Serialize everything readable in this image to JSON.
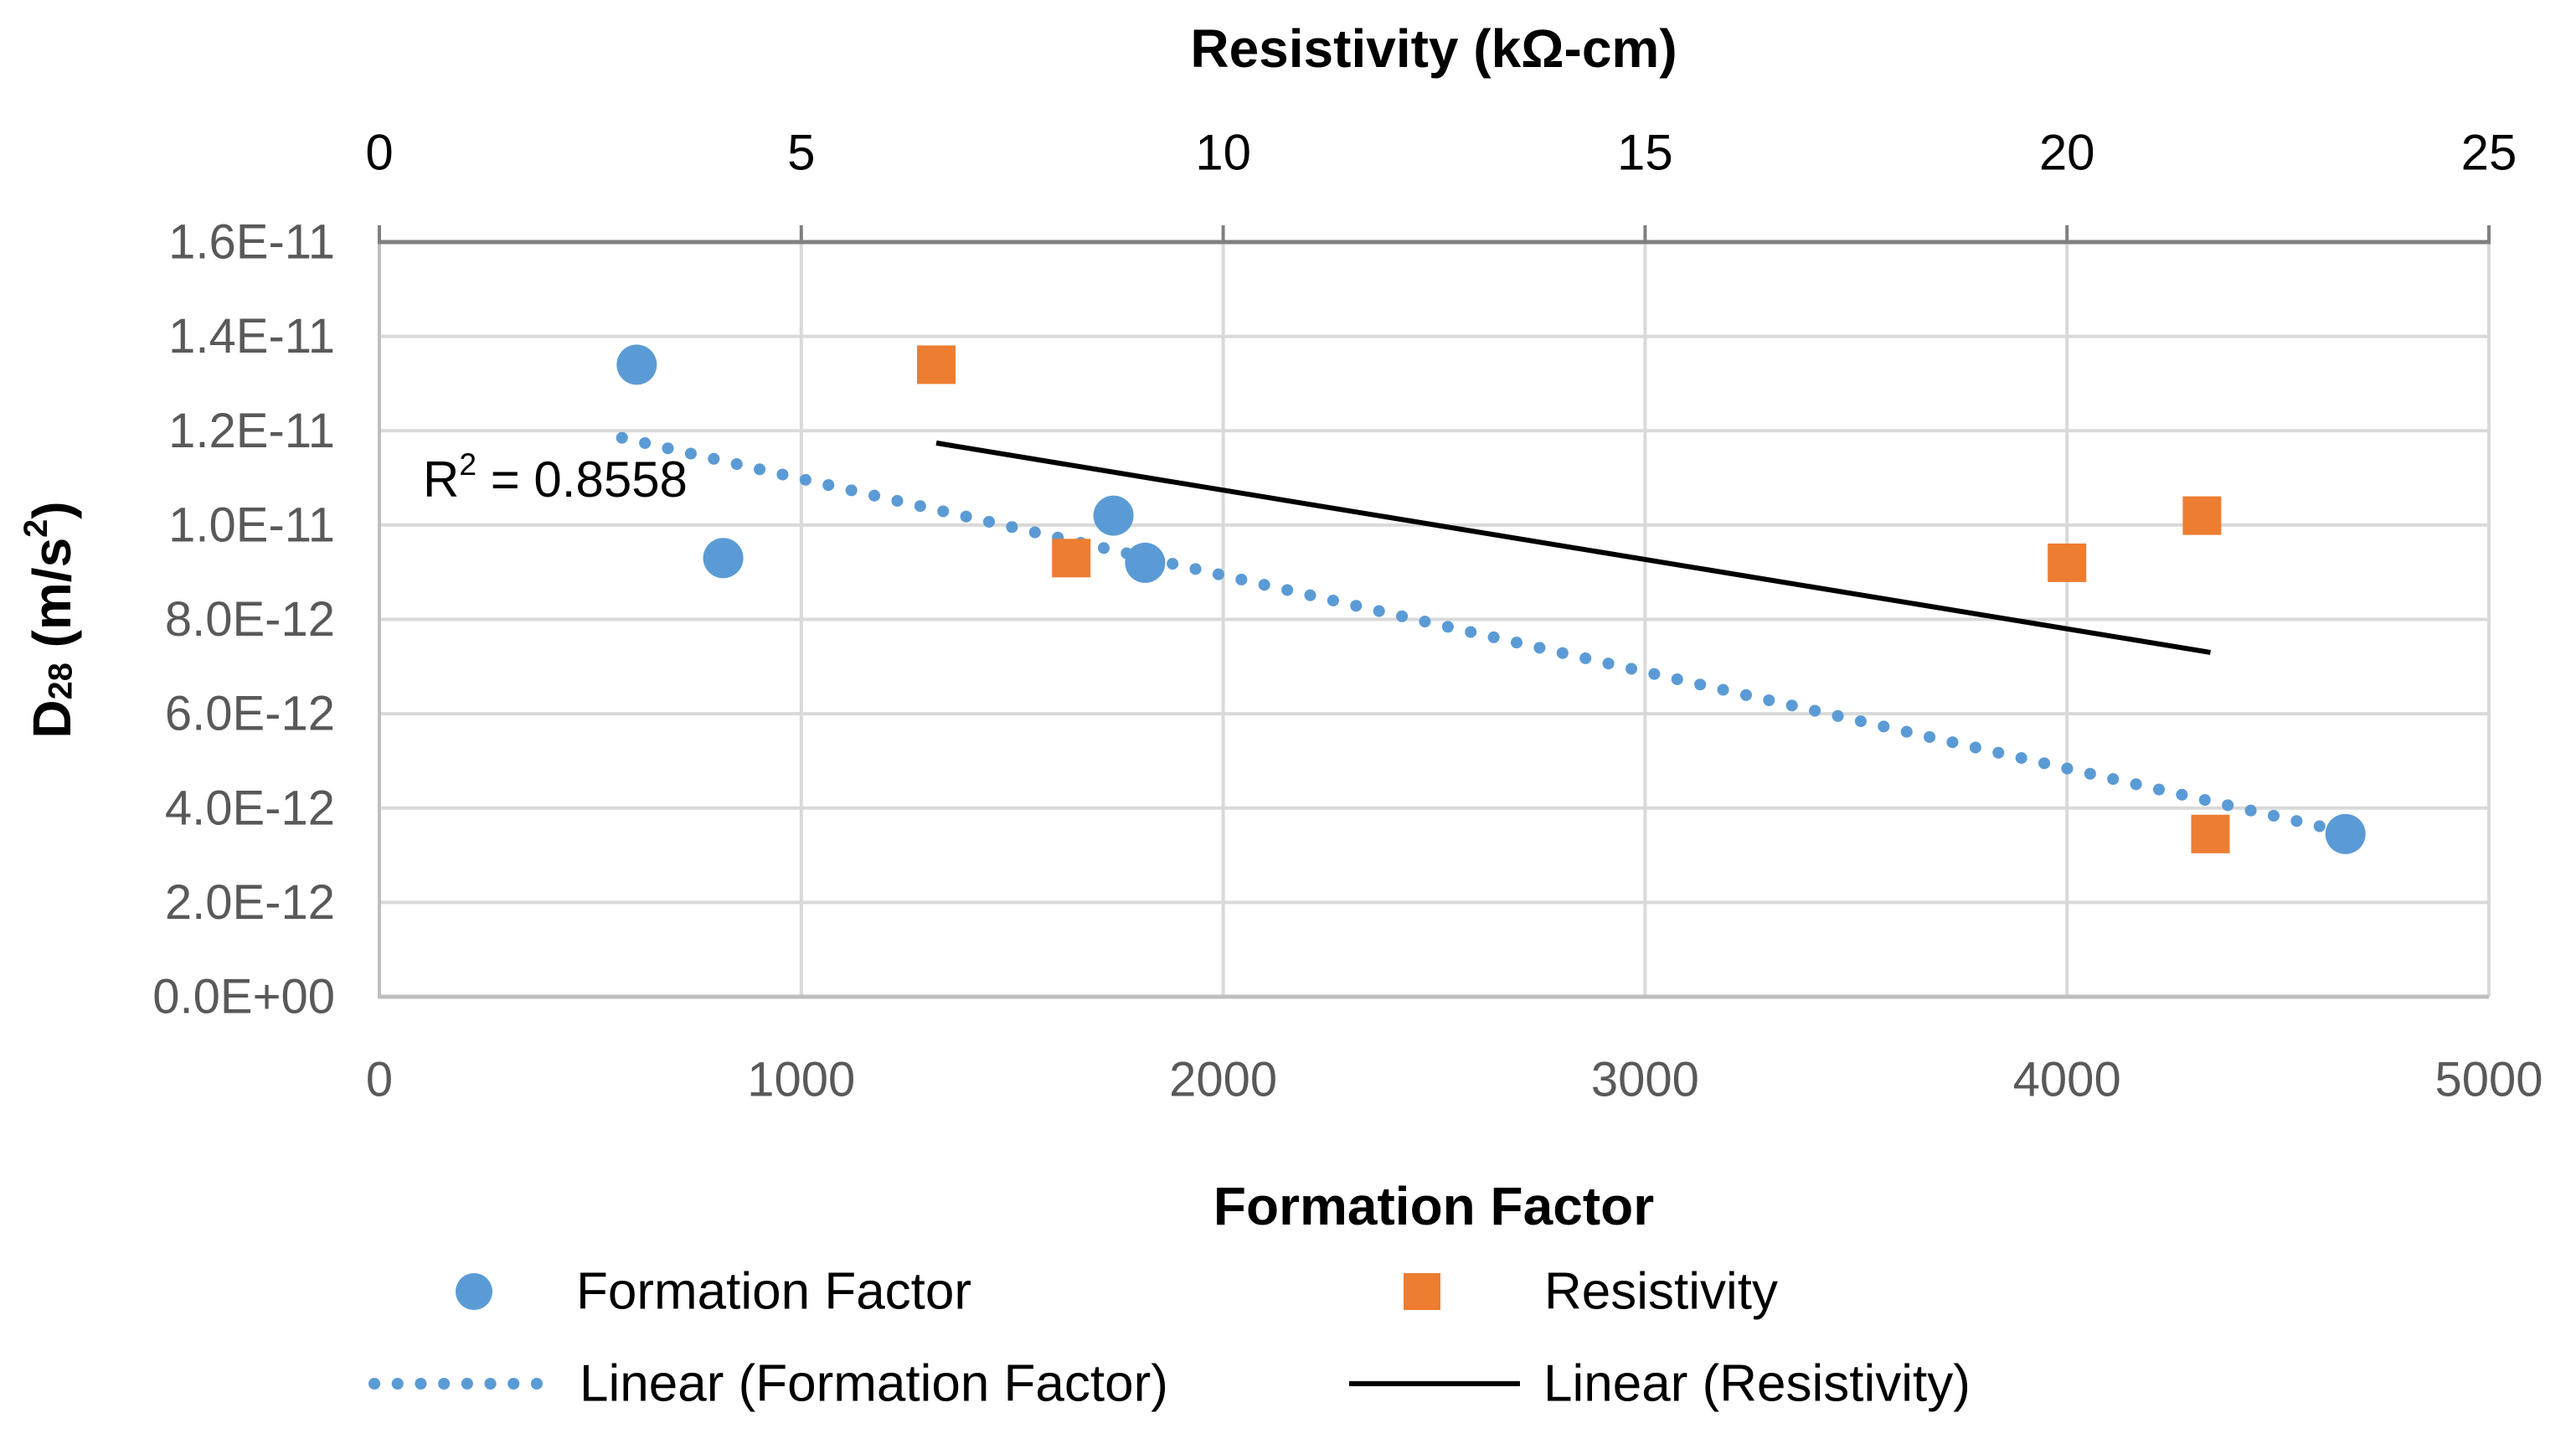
{
  "chart_data": {
    "type": "scatter",
    "top_axis": {
      "title": "Resistivity (kΩ-cm)",
      "min": 0,
      "max": 25,
      "ticks": [
        0,
        5,
        10,
        15,
        20,
        25
      ]
    },
    "bottom_axis": {
      "title": "Formation Factor",
      "min": 0,
      "max": 5000,
      "ticks": [
        0,
        1000,
        2000,
        3000,
        4000,
        5000
      ]
    },
    "y_axis": {
      "title_plain": "D28 (m/s2)",
      "title_parts": [
        {
          "t": "D"
        },
        {
          "t": "28",
          "sub": true
        },
        {
          "t": " (m/s"
        },
        {
          "t": "2",
          "sup": true
        },
        {
          "t": ")"
        }
      ],
      "min": 0,
      "max": 1.6e-11,
      "ticks": [
        {
          "value": 0.0,
          "label": "0.0E+00"
        },
        {
          "value": 2e-12,
          "label": "2.0E-12"
        },
        {
          "value": 4e-12,
          "label": "4.0E-12"
        },
        {
          "value": 6e-12,
          "label": "6.0E-12"
        },
        {
          "value": 8e-12,
          "label": "8.0E-12"
        },
        {
          "value": 1e-11,
          "label": "1.0E-11"
        },
        {
          "value": 1.2e-11,
          "label": "1.2E-11"
        },
        {
          "value": 1.4e-11,
          "label": "1.4E-11"
        },
        {
          "value": 1.6e-11,
          "label": "1.6E-11"
        }
      ]
    },
    "series": [
      {
        "name": "Formation Factor",
        "axis": "bottom",
        "marker": "circle",
        "color": "#5B9BD5",
        "points": [
          {
            "x": 610,
            "y": 1.34e-11
          },
          {
            "x": 815,
            "y": 9.3e-12
          },
          {
            "x": 1740,
            "y": 1.02e-11
          },
          {
            "x": 1815,
            "y": 9.2e-12
          },
          {
            "x": 4660,
            "y": 3.45e-12
          }
        ]
      },
      {
        "name": "Resistivity",
        "axis": "top",
        "marker": "square",
        "color": "#ED7D31",
        "points": [
          {
            "x": 6.6,
            "y": 1.34e-11
          },
          {
            "x": 8.2,
            "y": 9.3e-12
          },
          {
            "x": 21.6,
            "y": 1.02e-11
          },
          {
            "x": 20.0,
            "y": 9.2e-12
          },
          {
            "x": 21.7,
            "y": 3.45e-12
          }
        ]
      }
    ],
    "trendlines": [
      {
        "name": "Linear (Formation Factor)",
        "axis": "bottom",
        "style": "dotted",
        "color": "#5B9BD5",
        "from": {
          "x": 575,
          "y": 1.185e-11
        },
        "to": {
          "x": 4645,
          "y": 3.52e-12
        }
      },
      {
        "name": "Linear (Resistivity)",
        "axis": "top",
        "style": "solid",
        "color": "#000000",
        "from": {
          "x": 6.6,
          "y": 1.174e-11
        },
        "to": {
          "x": 21.7,
          "y": 7.3e-12
        }
      }
    ],
    "annotation": {
      "plain": "R² = 0.8558",
      "parts": [
        {
          "t": "R"
        },
        {
          "t": "2",
          "sup": true
        },
        {
          "t": " = 0.8558"
        }
      ]
    },
    "grid": true,
    "legend_position": "bottom"
  },
  "legend": {
    "rows": [
      [
        {
          "label": "Formation Factor",
          "marker": "circle",
          "color": "#5B9BD5"
        },
        {
          "label": "Resistivity",
          "marker": "square",
          "color": "#ED7D31"
        }
      ],
      [
        {
          "label": "Linear (Formation Factor)",
          "marker": "dotted-line",
          "color": "#5B9BD5"
        },
        {
          "label": "Linear (Resistivity)",
          "marker": "solid-line",
          "color": "#000000"
        }
      ]
    ]
  },
  "colors": {
    "formation_factor": "#5B9BD5",
    "resistivity": "#ED7D31",
    "trendline_resistivity": "#000000",
    "gridline": "#D9D9D9",
    "axis_line": "#BFBFBF",
    "top_axis_line": "#808080",
    "tick_text": "#595959"
  }
}
